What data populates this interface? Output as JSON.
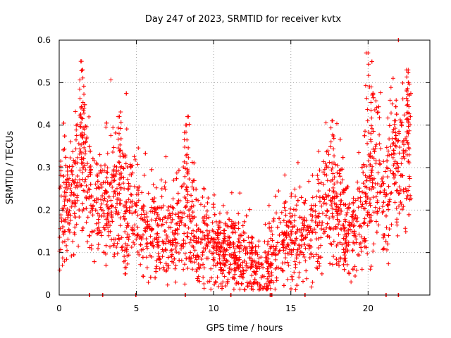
{
  "chart_data": {
    "type": "scatter",
    "title": "Day 247 of 2023, SRMTID for receiver kvtx",
    "xlabel": "GPS time / hours",
    "ylabel": "SRMTID / TECUs",
    "xlim": [
      0,
      24
    ],
    "ylim": [
      0,
      0.6
    ],
    "x_ticks": [
      0,
      5,
      10,
      15,
      20
    ],
    "x_tick_labels": [
      "0",
      "5",
      "10",
      "15",
      "20"
    ],
    "y_ticks": [
      0,
      0.1,
      0.2,
      0.3,
      0.4,
      0.5,
      0.6
    ],
    "y_tick_labels": [
      "0",
      "0.1",
      "0.2",
      "0.3",
      "0.4",
      "0.5",
      "0.6"
    ],
    "grid": true,
    "marker": "plus",
    "color": "#ff0000",
    "series": [
      {
        "name": "SRMTID",
        "trend": [
          [
            0.0,
            0.2
          ],
          [
            0.5,
            0.2
          ],
          [
            1.0,
            0.24
          ],
          [
            1.5,
            0.3
          ],
          [
            2.0,
            0.22
          ],
          [
            3.0,
            0.2
          ],
          [
            3.8,
            0.27
          ],
          [
            4.5,
            0.2
          ],
          [
            5.5,
            0.17
          ],
          [
            6.5,
            0.15
          ],
          [
            7.5,
            0.14
          ],
          [
            8.3,
            0.2
          ],
          [
            9.0,
            0.12
          ],
          [
            9.6,
            0.14
          ],
          [
            10.5,
            0.09
          ],
          [
            11.5,
            0.1
          ],
          [
            12.5,
            0.08
          ],
          [
            13.0,
            0.06
          ],
          [
            13.8,
            0.1
          ],
          [
            15.0,
            0.15
          ],
          [
            16.0,
            0.13
          ],
          [
            17.0,
            0.2
          ],
          [
            17.5,
            0.22
          ],
          [
            18.0,
            0.2
          ],
          [
            19.0,
            0.13
          ],
          [
            20.0,
            0.25
          ],
          [
            20.5,
            0.3
          ],
          [
            21.0,
            0.22
          ],
          [
            21.5,
            0.3
          ],
          [
            22.5,
            0.33
          ],
          [
            22.8,
            0.33
          ]
        ],
        "peaks": [
          [
            1.4,
            0.55
          ],
          [
            1.5,
            0.53
          ],
          [
            1.5,
            0.44
          ],
          [
            3.9,
            0.42
          ],
          [
            8.3,
            0.42
          ],
          [
            8.2,
            0.4
          ],
          [
            17.7,
            0.41
          ],
          [
            20.0,
            0.57
          ],
          [
            20.2,
            0.49
          ],
          [
            22.6,
            0.53
          ],
          [
            22.6,
            0.5
          ],
          [
            21.7,
            0.41
          ],
          [
            4.3,
            0.05
          ],
          [
            13.5,
            0.015
          ],
          [
            18.5,
            0.08
          ]
        ],
        "axis_points": [
          1.95,
          2.8,
          4.95,
          8.15,
          11.1,
          13.65,
          13.75,
          15.9,
          21.15,
          21.95
        ]
      }
    ]
  }
}
